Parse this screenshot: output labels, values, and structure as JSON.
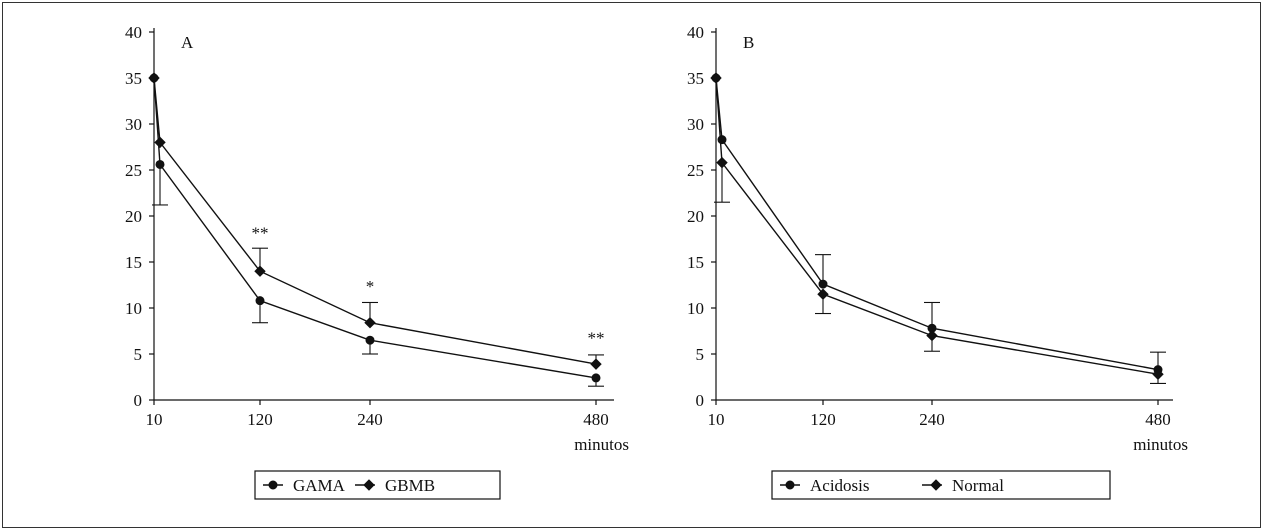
{
  "chart_data": [
    {
      "type": "line",
      "panel_label": "A",
      "x": [
        10,
        120,
        240,
        480
      ],
      "x_tick_labels": [
        "10",
        "120",
        "240",
        "480"
      ],
      "xlabel": "minutos",
      "ylim": [
        0,
        40
      ],
      "y_ticks": [
        0,
        5,
        10,
        15,
        20,
        25,
        30,
        35,
        40
      ],
      "series": [
        {
          "name": "GAMA",
          "marker": "circle",
          "points": [
            [
              0,
              35
            ],
            [
              10,
              25.6
            ],
            [
              120,
              10.8
            ],
            [
              240,
              6.5
            ],
            [
              480,
              2.4
            ]
          ],
          "error_low": [
            null,
            21.2,
            8.4,
            5.0,
            1.5
          ]
        },
        {
          "name": "GBMB",
          "marker": "diamond",
          "points": [
            [
              0,
              35
            ],
            [
              10,
              28
            ],
            [
              120,
              14
            ],
            [
              240,
              8.4
            ],
            [
              480,
              3.9
            ]
          ],
          "error_high": [
            null,
            null,
            16.5,
            10.6,
            4.9
          ]
        }
      ],
      "annotations": [
        {
          "x": 120,
          "y": 18.2,
          "text": "**"
        },
        {
          "x": 240,
          "y": 12.4,
          "text": "*"
        },
        {
          "x": 480,
          "y": 6.8,
          "text": "**"
        }
      ],
      "legend": {
        "placement": "bottom",
        "entries": [
          "GAMA",
          "GBMB"
        ]
      }
    },
    {
      "type": "line",
      "panel_label": "B",
      "x": [
        10,
        120,
        240,
        480
      ],
      "x_tick_labels": [
        "10",
        "120",
        "240",
        "480"
      ],
      "xlabel": "minutos",
      "ylim": [
        0,
        40
      ],
      "y_ticks": [
        0,
        5,
        10,
        15,
        20,
        25,
        30,
        35,
        40
      ],
      "series": [
        {
          "name": "Acidosis",
          "marker": "circle",
          "points": [
            [
              0,
              35
            ],
            [
              10,
              28.3
            ],
            [
              120,
              12.6
            ],
            [
              240,
              7.8
            ],
            [
              480,
              3.3
            ]
          ],
          "error_high": [
            null,
            null,
            15.8,
            10.6,
            5.2
          ]
        },
        {
          "name": "Normal",
          "marker": "diamond",
          "points": [
            [
              0,
              35
            ],
            [
              10,
              25.8
            ],
            [
              120,
              11.5
            ],
            [
              240,
              7.0
            ],
            [
              480,
              2.8
            ]
          ],
          "error_low": [
            null,
            21.5,
            9.4,
            5.3,
            1.8
          ]
        }
      ],
      "legend": {
        "placement": "bottom",
        "entries": [
          "Acidosis",
          "Normal"
        ]
      }
    }
  ]
}
